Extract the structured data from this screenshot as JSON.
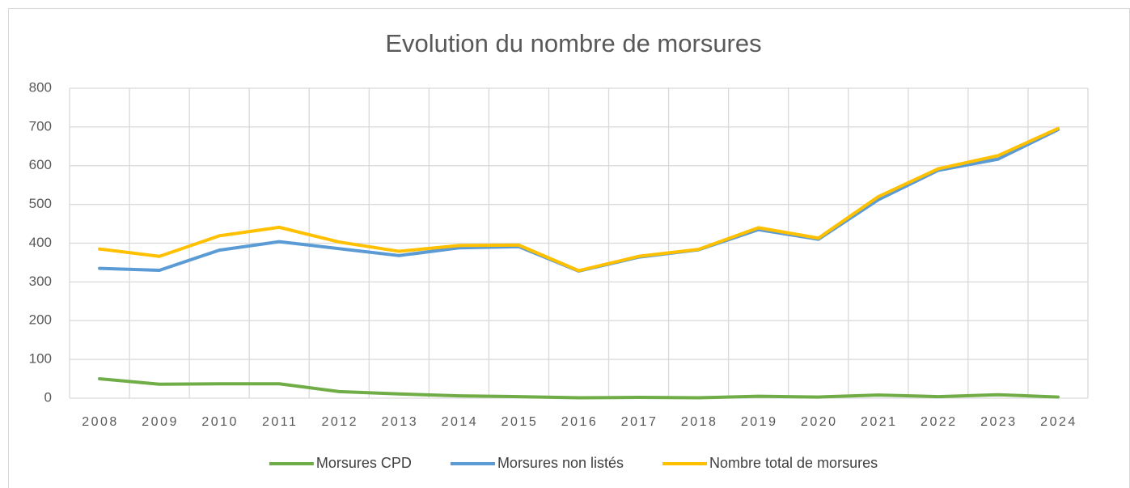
{
  "chart_data": {
    "type": "line",
    "title": "Evolution du nombre de morsures",
    "categories": [
      "2008",
      "2009",
      "2010",
      "2011",
      "2012",
      "2013",
      "2014",
      "2015",
      "2016",
      "2017",
      "2018",
      "2019",
      "2020",
      "2021",
      "2022",
      "2023",
      "2024"
    ],
    "series": [
      {
        "name": "Morsures CPD",
        "color": "#70ad47",
        "values": [
          50,
          36,
          37,
          37,
          17,
          11,
          6,
          4,
          1,
          2,
          1,
          5,
          3,
          8,
          4,
          9,
          3
        ]
      },
      {
        "name": "Morsures non listés",
        "color": "#5b9bd5",
        "values": [
          335,
          330,
          382,
          404,
          386,
          368,
          388,
          391,
          328,
          364,
          383,
          435,
          410,
          512,
          588,
          617,
          693
        ]
      },
      {
        "name": "Nombre total de morsures",
        "color": "#ffc000",
        "values": [
          385,
          366,
          419,
          441,
          403,
          379,
          394,
          395,
          329,
          366,
          384,
          440,
          413,
          520,
          592,
          626,
          696
        ]
      }
    ],
    "ylim": [
      0,
      800
    ],
    "yticks": [
      0,
      100,
      200,
      300,
      400,
      500,
      600,
      700,
      800
    ],
    "grid": true,
    "legend": "bottom"
  }
}
